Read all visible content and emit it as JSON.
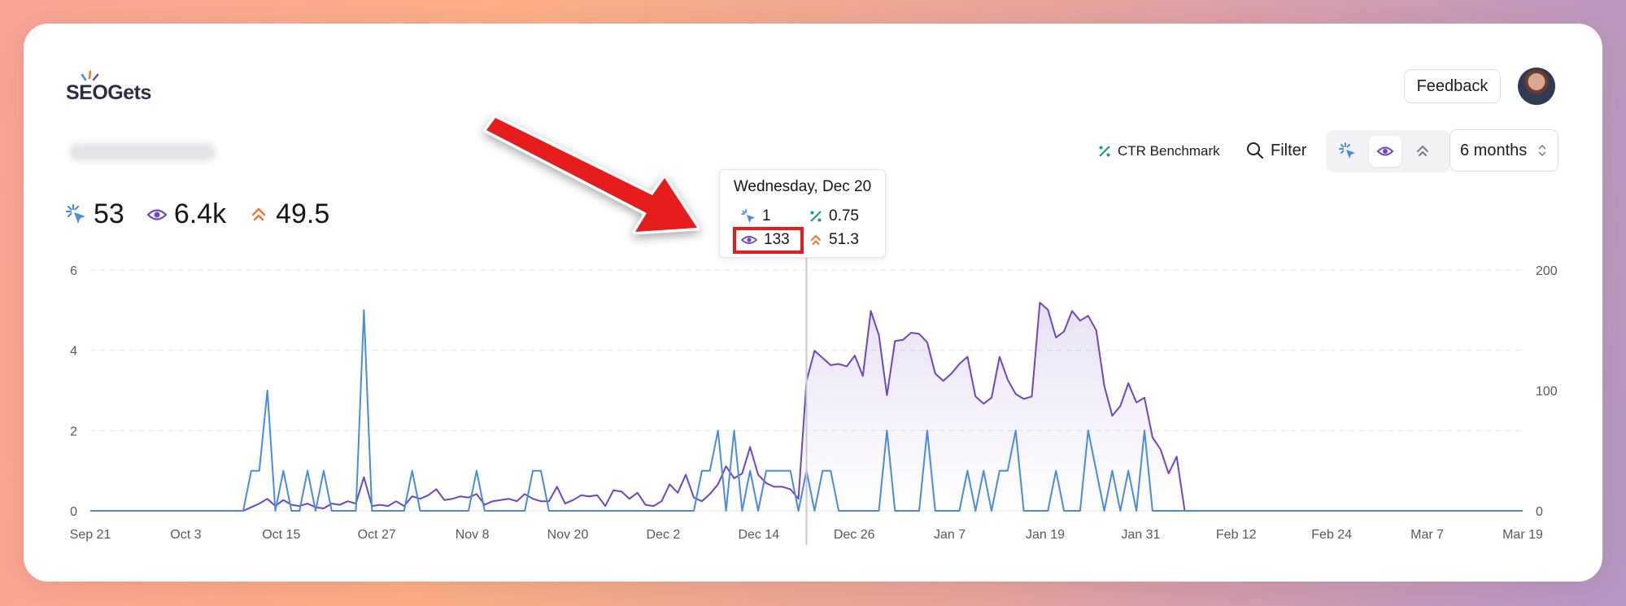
{
  "app": {
    "logo_text": "SEOGets"
  },
  "header": {
    "feedback_label": "Feedback"
  },
  "toolbar": {
    "ctr_benchmark_label": "CTR Benchmark",
    "filter_label": "Filter",
    "period_label": "6 months",
    "metric_toggles": [
      "clicks-icon",
      "impressions-icon",
      "position-icon"
    ]
  },
  "stats": {
    "clicks": "53",
    "impressions": "6.4k",
    "position": "49.5"
  },
  "tooltip": {
    "date": "Wednesday, Dec 20",
    "clicks": "1",
    "ctr": "0.75",
    "impressions": "133",
    "position": "51.3"
  },
  "colors": {
    "clicks": "#4a8be0",
    "impressions": "#6e45c2",
    "position": "#f0762f",
    "ctr": "#1a9a7e",
    "highlight": "#e61b1b"
  },
  "chart_data": {
    "type": "line",
    "x": [
      "Sep 21",
      "Oct 3",
      "Oct 15",
      "Oct 27",
      "Nov 8",
      "Nov 20",
      "Dec 2",
      "Dec 14",
      "Dec 26",
      "Jan 7",
      "Jan 19",
      "Jan 31",
      "Feb 12",
      "Feb 24",
      "Mar 7",
      "Mar 19"
    ],
    "left_axis": {
      "ylim": [
        0,
        6
      ],
      "ticks": [
        "0",
        "2",
        "4",
        "6"
      ]
    },
    "right_axis": {
      "ylim": [
        0,
        200
      ],
      "ticks": [
        "0",
        "100",
        "200"
      ]
    },
    "series": [
      {
        "axis": "left",
        "points": [
          [
            0,
            0
          ],
          [
            19,
            0
          ],
          [
            20,
            1
          ],
          [
            21,
            1
          ],
          [
            22,
            3
          ],
          [
            23,
            0
          ],
          [
            24,
            1
          ],
          [
            25,
            0
          ],
          [
            26,
            0
          ],
          [
            27,
            1
          ],
          [
            28,
            0
          ],
          [
            29,
            1
          ],
          [
            30,
            0
          ],
          [
            33,
            0
          ],
          [
            34,
            5
          ],
          [
            35,
            0
          ],
          [
            39,
            0
          ],
          [
            40,
            1
          ],
          [
            41,
            0
          ],
          [
            47,
            0
          ],
          [
            48,
            1
          ],
          [
            49,
            0
          ],
          [
            54,
            0
          ],
          [
            55,
            1
          ],
          [
            56,
            1
          ],
          [
            57,
            0
          ],
          [
            75,
            0
          ],
          [
            76,
            1
          ],
          [
            77,
            1
          ],
          [
            78,
            2
          ],
          [
            79,
            0
          ],
          [
            80,
            2
          ],
          [
            81,
            0
          ],
          [
            82,
            1
          ],
          [
            83,
            0
          ],
          [
            84,
            1
          ],
          [
            85,
            1
          ],
          [
            86,
            1
          ],
          [
            87,
            1
          ],
          [
            88,
            0
          ],
          [
            89,
            1
          ],
          [
            90,
            0
          ],
          [
            91,
            1
          ],
          [
            92,
            1
          ],
          [
            93,
            0
          ],
          [
            98,
            0
          ],
          [
            99,
            2
          ],
          [
            100,
            0
          ],
          [
            103,
            0
          ],
          [
            104,
            2
          ],
          [
            105,
            0
          ],
          [
            108,
            0
          ],
          [
            109,
            1
          ],
          [
            110,
            0
          ],
          [
            111,
            1
          ],
          [
            112,
            0
          ],
          [
            113,
            1
          ],
          [
            114,
            1
          ],
          [
            115,
            2
          ],
          [
            116,
            0
          ],
          [
            118,
            0
          ],
          [
            119,
            0
          ],
          [
            120,
            1
          ],
          [
            121,
            0
          ],
          [
            123,
            0
          ],
          [
            124,
            2
          ],
          [
            125,
            1
          ],
          [
            126,
            0
          ],
          [
            127,
            1
          ],
          [
            128,
            0
          ],
          [
            129,
            1
          ],
          [
            130,
            0
          ],
          [
            131,
            2
          ],
          [
            132,
            0
          ],
          [
            178,
            0
          ]
        ]
      },
      {
        "axis": "right",
        "points": [
          [
            0,
            0
          ],
          [
            19,
            0
          ],
          [
            20,
            3
          ],
          [
            21,
            6
          ],
          [
            22,
            10
          ],
          [
            23,
            4
          ],
          [
            24,
            9
          ],
          [
            25,
            5
          ],
          [
            26,
            4
          ],
          [
            27,
            6
          ],
          [
            28,
            3
          ],
          [
            29,
            2
          ],
          [
            30,
            6
          ],
          [
            31,
            5
          ],
          [
            32,
            8
          ],
          [
            33,
            6
          ],
          [
            34,
            28
          ],
          [
            35,
            4
          ],
          [
            36,
            5
          ],
          [
            37,
            4
          ],
          [
            38,
            8
          ],
          [
            39,
            4
          ],
          [
            40,
            12
          ],
          [
            41,
            10
          ],
          [
            42,
            13
          ],
          [
            43,
            18
          ],
          [
            44,
            9
          ],
          [
            45,
            10
          ],
          [
            46,
            12
          ],
          [
            47,
            11
          ],
          [
            48,
            14
          ],
          [
            49,
            5
          ],
          [
            50,
            8
          ],
          [
            51,
            9
          ],
          [
            52,
            10
          ],
          [
            53,
            8
          ],
          [
            54,
            14
          ],
          [
            55,
            10
          ],
          [
            56,
            8
          ],
          [
            57,
            8
          ],
          [
            58,
            20
          ],
          [
            59,
            6
          ],
          [
            60,
            9
          ],
          [
            61,
            13
          ],
          [
            62,
            12
          ],
          [
            63,
            13
          ],
          [
            64,
            4
          ],
          [
            65,
            17
          ],
          [
            66,
            16
          ],
          [
            67,
            10
          ],
          [
            68,
            15
          ],
          [
            69,
            5
          ],
          [
            70,
            4
          ],
          [
            71,
            8
          ],
          [
            72,
            22
          ],
          [
            73,
            15
          ],
          [
            74,
            30
          ],
          [
            75,
            11
          ],
          [
            76,
            8
          ],
          [
            77,
            14
          ],
          [
            78,
            22
          ],
          [
            79,
            37
          ],
          [
            80,
            27
          ],
          [
            81,
            31
          ],
          [
            82,
            53
          ],
          [
            83,
            30
          ],
          [
            84,
            23
          ],
          [
            85,
            20
          ],
          [
            86,
            20
          ],
          [
            87,
            18
          ],
          [
            88,
            10
          ],
          [
            89,
            108
          ],
          [
            90,
            133
          ],
          [
            91,
            127
          ],
          [
            92,
            121
          ],
          [
            93,
            122
          ],
          [
            94,
            120
          ],
          [
            95,
            129
          ],
          [
            96,
            112
          ],
          [
            97,
            166
          ],
          [
            98,
            146
          ],
          [
            99,
            96
          ],
          [
            100,
            141
          ],
          [
            101,
            142
          ],
          [
            102,
            148
          ],
          [
            103,
            147
          ],
          [
            104,
            140
          ],
          [
            105,
            114
          ],
          [
            106,
            108
          ],
          [
            107,
            114
          ],
          [
            108,
            122
          ],
          [
            109,
            128
          ],
          [
            110,
            95
          ],
          [
            111,
            89
          ],
          [
            112,
            94
          ],
          [
            113,
            128
          ],
          [
            114,
            109
          ],
          [
            115,
            97
          ],
          [
            116,
            93
          ],
          [
            117,
            95
          ],
          [
            118,
            173
          ],
          [
            119,
            167
          ],
          [
            120,
            144
          ],
          [
            121,
            149
          ],
          [
            122,
            166
          ],
          [
            123,
            158
          ],
          [
            124,
            162
          ],
          [
            125,
            150
          ],
          [
            126,
            104
          ],
          [
            127,
            79
          ],
          [
            128,
            87
          ],
          [
            129,
            106
          ],
          [
            130,
            90
          ],
          [
            131,
            94
          ],
          [
            132,
            61
          ],
          [
            133,
            51
          ],
          [
            134,
            31
          ],
          [
            135,
            45
          ],
          [
            136,
            0
          ],
          [
            178,
            0
          ]
        ]
      }
    ],
    "x_range": [
      0,
      178
    ],
    "grid": true,
    "hover_index": 89
  }
}
